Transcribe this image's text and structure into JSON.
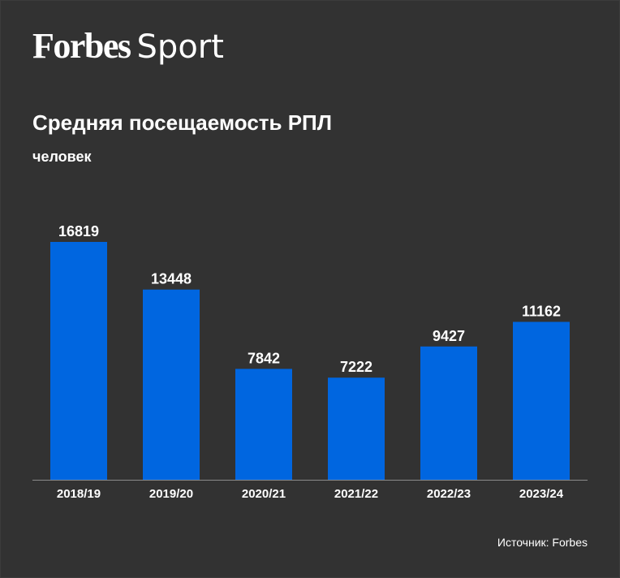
{
  "brand": {
    "name": "Forbes",
    "section": "Sport"
  },
  "colors": {
    "background": "#323232",
    "bar": "#0066e0",
    "axis": "#8a8a8a",
    "text": "#ffffff"
  },
  "chart_data": {
    "type": "bar",
    "title": "Средняя посещаемость РПЛ",
    "subtitle": "человек",
    "xlabel": "",
    "ylabel": "человек",
    "categories": [
      "2018/19",
      "2019/20",
      "2020/21",
      "2021/22",
      "2022/23",
      "2023/24"
    ],
    "values": [
      16819,
      13448,
      7842,
      7222,
      9427,
      11162
    ],
    "ylim": [
      0,
      17500
    ],
    "grid": false,
    "legend": "none",
    "source": "Источник: Forbes"
  }
}
